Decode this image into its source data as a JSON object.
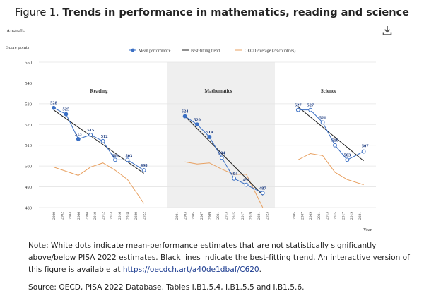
{
  "figure": {
    "title_prefix": "Figure 1. ",
    "title_bold": "Trends in performance in mathematics, reading and science"
  },
  "chart_data": {
    "type": "line",
    "country": "Australia",
    "ylabel": "Score points",
    "xlabel": "Year",
    "ylim": [
      480,
      550
    ],
    "yticks": [
      480,
      490,
      500,
      510,
      520,
      530,
      540,
      550
    ],
    "grid": true,
    "legend_position": "top",
    "legend": [
      "Mean performance",
      "Best-fitting trend",
      "OECD Average (23 countries)"
    ],
    "x_ticks": [
      "2000",
      "2002",
      "2004",
      "2006",
      "2008",
      "2010",
      "2012",
      "2014",
      "2016",
      "2018",
      "2020",
      "2022",
      "2001",
      "2003",
      "2005",
      "2007",
      "2009",
      "2011",
      "2013",
      "2015",
      "2017",
      "2019",
      "2021",
      "2023",
      "2005",
      "2007",
      "2009",
      "2011",
      "2013",
      "2015",
      "2017",
      "2019",
      "2021"
    ],
    "panels": [
      {
        "subject": "Reading",
        "mean": [
          {
            "x": 2000,
            "y": 528
          },
          {
            "x": 2003,
            "y": 525
          },
          {
            "x": 2006,
            "y": 513
          },
          {
            "x": 2009,
            "y": 515
          },
          {
            "x": 2012,
            "y": 512
          },
          {
            "x": 2015,
            "y": 503
          },
          {
            "x": 2018,
            "y": 503
          },
          {
            "x": 2022,
            "y": 498
          }
        ],
        "trend": [
          {
            "x": 2000,
            "y": 527
          },
          {
            "x": 2022,
            "y": 496.5
          }
        ],
        "oecd": [
          {
            "x": 2000,
            "y": 499.5
          },
          {
            "x": 2003,
            "y": 497.5
          },
          {
            "x": 2006,
            "y": 495.5
          },
          {
            "x": 2009,
            "y": 499.5
          },
          {
            "x": 2012,
            "y": 501.5
          },
          {
            "x": 2015,
            "y": 498
          },
          {
            "x": 2018,
            "y": 493.5
          },
          {
            "x": 2022,
            "y": 482
          }
        ]
      },
      {
        "subject": "Mathematics",
        "mean": [
          {
            "x": 2003,
            "y": 524
          },
          {
            "x": 2006,
            "y": 520
          },
          {
            "x": 2009,
            "y": 514
          },
          {
            "x": 2012,
            "y": 504
          },
          {
            "x": 2015,
            "y": 494
          },
          {
            "x": 2018,
            "y": 491
          },
          {
            "x": 2022,
            "y": 487
          }
        ],
        "trend": [
          {
            "x": 2003,
            "y": 524
          },
          {
            "x": 2022,
            "y": 486
          }
        ],
        "oecd": [
          {
            "x": 2003,
            "y": 502
          },
          {
            "x": 2006,
            "y": 501
          },
          {
            "x": 2009,
            "y": 501.5
          },
          {
            "x": 2012,
            "y": 498.5
          },
          {
            "x": 2015,
            "y": 496
          },
          {
            "x": 2018,
            "y": 496
          },
          {
            "x": 2022,
            "y": 480
          }
        ]
      },
      {
        "subject": "Science",
        "mean": [
          {
            "x": 2006,
            "y": 527
          },
          {
            "x": 2009,
            "y": 527
          },
          {
            "x": 2012,
            "y": 521
          },
          {
            "x": 2015,
            "y": 510
          },
          {
            "x": 2018,
            "y": 503
          },
          {
            "x": 2022,
            "y": 507
          }
        ],
        "trend": [
          {
            "x": 2006,
            "y": 528.5
          },
          {
            "x": 2022,
            "y": 502.5
          }
        ],
        "oecd": [
          {
            "x": 2006,
            "y": 503
          },
          {
            "x": 2009,
            "y": 506
          },
          {
            "x": 2012,
            "y": 505
          },
          {
            "x": 2015,
            "y": 497
          },
          {
            "x": 2018,
            "y": 493.5
          },
          {
            "x": 2022,
            "y": 491
          }
        ]
      }
    ]
  },
  "colors": {
    "mean": "#3a6fc4",
    "trend": "#222222",
    "oecd": "#e8a060",
    "shade": "#efefef",
    "grid": "#e4e4e4"
  },
  "note": {
    "text": "Note: White dots indicate mean-performance estimates that are not statistically significantly above/below PISA 2022 estimates. Black lines indicate the best-fitting trend. An interactive version of this figure is available at ",
    "link": "https://oecdch.art/a40de1dbaf/C620",
    "end": "."
  },
  "source": "Source: OECD, PISA 2022 Database, Tables I.B1.5.4, I.B1.5.5 and I.B1.5.6.",
  "download_icon": "download-icon"
}
